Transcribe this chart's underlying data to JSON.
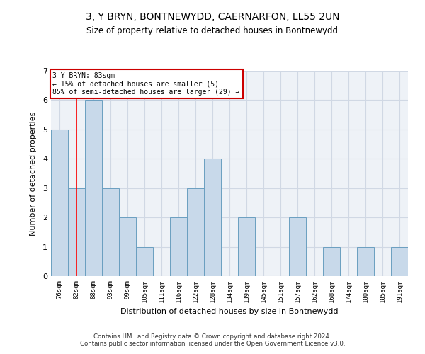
{
  "title_line1": "3, Y BRYN, BONTNEWYDD, CAERNARFON, LL55 2UN",
  "title_line2": "Size of property relative to detached houses in Bontnewydd",
  "xlabel": "Distribution of detached houses by size in Bontnewydd",
  "ylabel": "Number of detached properties",
  "footnote": "Contains HM Land Registry data © Crown copyright and database right 2024.\nContains public sector information licensed under the Open Government Licence v3.0.",
  "annotation_title": "3 Y BRYN: 83sqm",
  "annotation_line2": "← 15% of detached houses are smaller (5)",
  "annotation_line3": "85% of semi-detached houses are larger (29) →",
  "bar_color": "#c8d9ea",
  "bar_edge_color": "#6a9fc0",
  "annotation_box_color": "#ffffff",
  "annotation_box_edge": "#cc0000",
  "red_line_x": 1,
  "categories": [
    "76sqm",
    "82sqm",
    "88sqm",
    "93sqm",
    "99sqm",
    "105sqm",
    "111sqm",
    "116sqm",
    "122sqm",
    "128sqm",
    "134sqm",
    "139sqm",
    "145sqm",
    "151sqm",
    "157sqm",
    "162sqm",
    "168sqm",
    "174sqm",
    "180sqm",
    "185sqm",
    "191sqm"
  ],
  "values": [
    5,
    3,
    6,
    3,
    2,
    1,
    0,
    2,
    3,
    4,
    0,
    2,
    0,
    0,
    2,
    0,
    1,
    0,
    1,
    0,
    1
  ],
  "ylim": [
    0,
    7
  ],
  "yticks": [
    0,
    1,
    2,
    3,
    4,
    5,
    6,
    7
  ],
  "grid_color": "#d0d8e4",
  "bg_color": "#eef2f7"
}
